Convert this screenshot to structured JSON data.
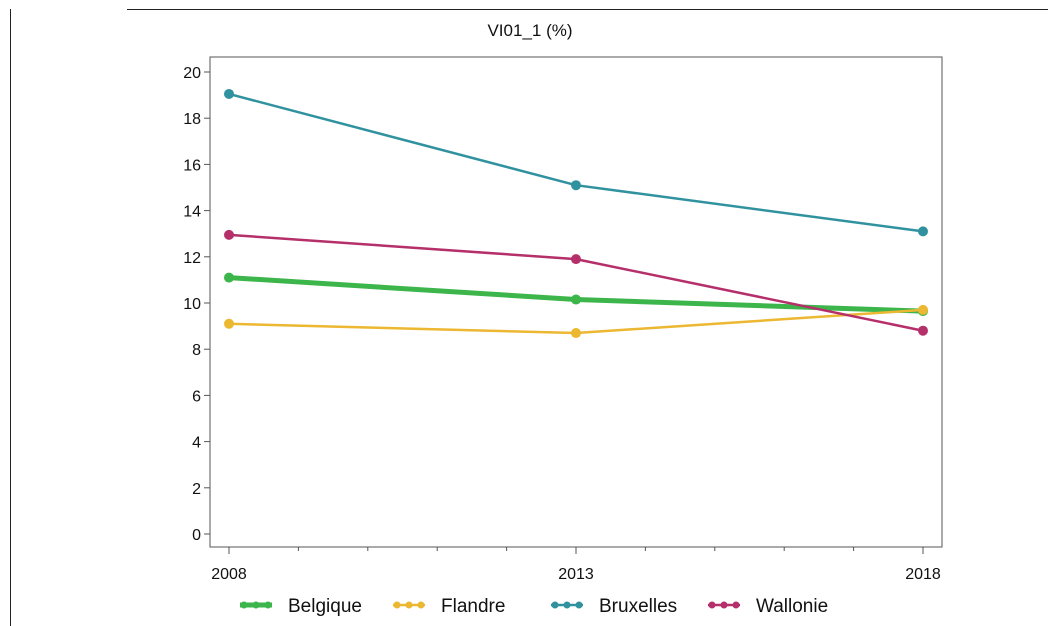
{
  "chart_data": {
    "type": "line",
    "title": "VI01_1 (%)",
    "xlabel": "",
    "ylabel": "",
    "x": [
      "2008",
      "2013",
      "2018"
    ],
    "ylim": [
      0,
      20
    ],
    "yticks": [
      "0",
      "2",
      "4",
      "6",
      "8",
      "10",
      "12",
      "14",
      "16",
      "18",
      "20"
    ],
    "grid": false,
    "legend_position": "bottom",
    "series": [
      {
        "name": "Belgique",
        "color": "#3cb54a",
        "values": [
          11.1,
          10.15,
          9.65
        ]
      },
      {
        "name": "Flandre",
        "color": "#ecb731",
        "values": [
          9.1,
          8.7,
          9.7
        ]
      },
      {
        "name": "Bruxelles",
        "color": "#31929f",
        "values": [
          19.05,
          15.1,
          13.1
        ]
      },
      {
        "name": "Wallonie",
        "color": "#b52f6a",
        "values": [
          12.95,
          11.9,
          8.8
        ]
      }
    ]
  }
}
